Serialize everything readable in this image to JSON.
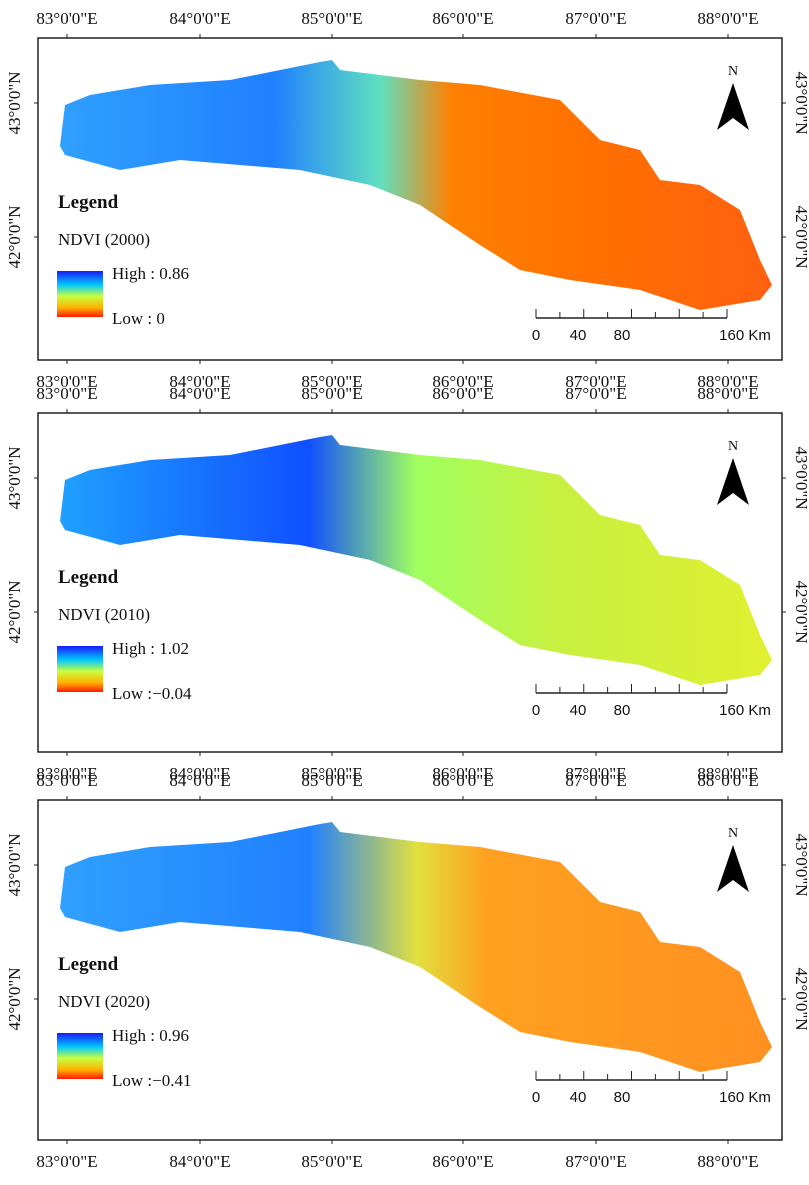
{
  "axes": {
    "longitude_labels": [
      "83°0'0\"E",
      "84°0'0\"E",
      "85°0'0\"E",
      "86°0'0\"E",
      "87°0'0\"E",
      "88°0'0\"E"
    ],
    "latitude_labels": [
      "43°0'0\"N",
      "42°0'0\"N"
    ]
  },
  "panels": [
    {
      "legend_title": "Legend",
      "layer": "NDVI (2000)",
      "high": "High : 0.86",
      "low": "Low : 0",
      "north": "N",
      "scale_labels": [
        "0",
        "40",
        "80",
        "160 Km"
      ]
    },
    {
      "legend_title": "Legend",
      "layer": "NDVI (2010)",
      "high": "High : 1.02",
      "low": "Low :−0.04",
      "north": "N",
      "scale_labels": [
        "0",
        "40",
        "80",
        "160 Km"
      ]
    },
    {
      "legend_title": "Legend",
      "layer": "NDVI (2020)",
      "high": "High : 0.96",
      "low": "Low :−0.41",
      "north": "N",
      "scale_labels": [
        "0",
        "40",
        "80",
        "160 Km"
      ]
    }
  ]
}
